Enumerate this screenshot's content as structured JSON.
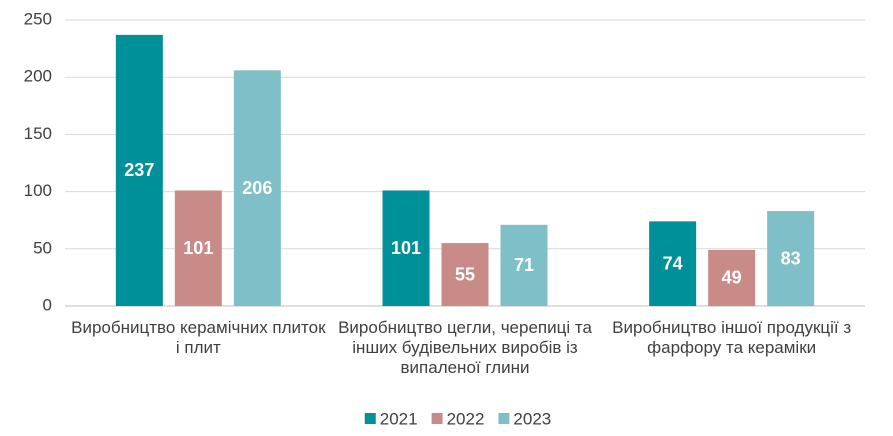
{
  "chart_data": {
    "type": "bar",
    "categories": [
      "Виробництво керамічних плиток і плит",
      "Виробництво цегли, черепиці та інших будівельних виробів із випаленої глини",
      "Виробництво іншої продукції з фарфору та кераміки"
    ],
    "series": [
      {
        "name": "2021",
        "color": "#00909a",
        "values": [
          237,
          101,
          74
        ]
      },
      {
        "name": "2022",
        "color": "#c98b87",
        "values": [
          101,
          55,
          49
        ]
      },
      {
        "name": "2023",
        "color": "#7fbfc8",
        "values": [
          206,
          71,
          83
        ]
      }
    ],
    "ylim": [
      0,
      250
    ],
    "yticks": [
      0,
      50,
      100,
      150,
      200,
      250
    ],
    "grid": true,
    "legend": "bottom"
  }
}
